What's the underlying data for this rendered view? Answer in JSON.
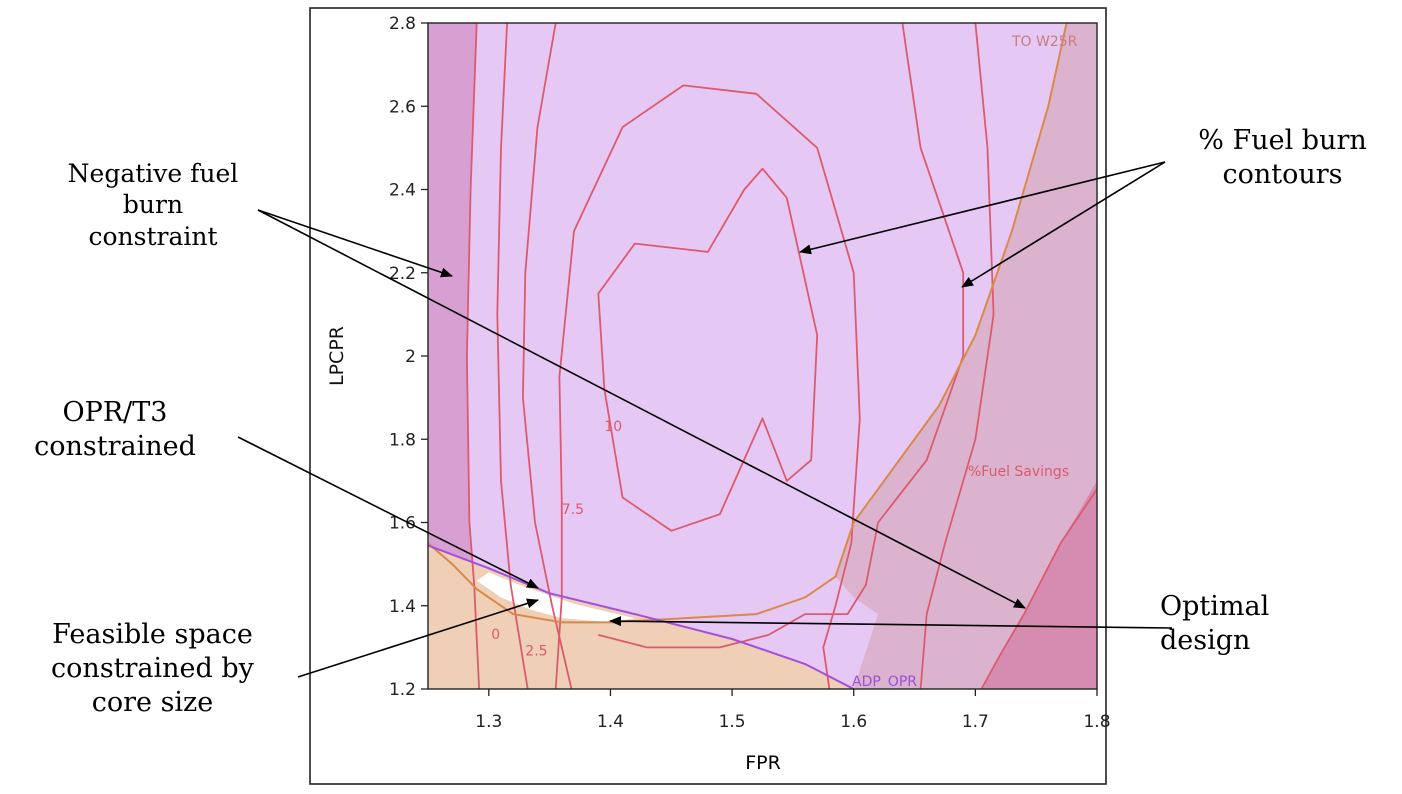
{
  "chart_data": {
    "type": "contour",
    "xlabel": "FPR",
    "ylabel": "LPCPR",
    "xlim": [
      1.25,
      1.8
    ],
    "ylim": [
      1.2,
      2.8
    ],
    "x_ticks": [
      "1.3",
      "1.4",
      "1.5",
      "1.6",
      "1.7",
      "1.8"
    ],
    "y_ticks": [
      "1.2",
      "1.4",
      "1.6",
      "1.8",
      "2",
      "2.2",
      "2.4",
      "2.6",
      "2.8"
    ],
    "contour_level_labels": [
      {
        "text": "0",
        "x": 1.302,
        "y": 1.32
      },
      {
        "text": "2.5",
        "x": 1.33,
        "y": 1.28
      },
      {
        "text": "7.5",
        "x": 1.36,
        "y": 1.62
      },
      {
        "text": "10",
        "x": 1.395,
        "y": 1.82
      }
    ],
    "constraint_labels": {
      "to_w25r": "TO W25R",
      "fuel_savings": "%Fuel Savings",
      "adp_opr": "ADP_OPR"
    },
    "contours": [
      {
        "level": "0",
        "points": [
          [
            1.29,
            2.8
          ],
          [
            1.285,
            2.4
          ],
          [
            1.282,
            2.0
          ],
          [
            1.284,
            1.6
          ],
          [
            1.288,
            1.45
          ],
          [
            1.292,
            1.2
          ]
        ]
      },
      {
        "level": "2.5",
        "points": [
          [
            1.315,
            2.8
          ],
          [
            1.31,
            2.5
          ],
          [
            1.307,
            2.1
          ],
          [
            1.31,
            1.7
          ],
          [
            1.318,
            1.45
          ],
          [
            1.332,
            1.2
          ]
        ]
      },
      {
        "level": "5",
        "points": [
          [
            1.355,
            2.8
          ],
          [
            1.34,
            2.55
          ],
          [
            1.33,
            2.2
          ],
          [
            1.328,
            1.9
          ],
          [
            1.338,
            1.6
          ],
          [
            1.352,
            1.4
          ],
          [
            1.368,
            1.2
          ]
        ]
      },
      {
        "level": "7.5",
        "points": [
          [
            1.355,
            1.2
          ],
          [
            1.36,
            1.42
          ],
          [
            1.36,
            1.65
          ],
          [
            1.358,
            1.95
          ],
          [
            1.37,
            2.3
          ],
          [
            1.41,
            2.55
          ],
          [
            1.46,
            2.65
          ],
          [
            1.52,
            2.63
          ],
          [
            1.57,
            2.5
          ],
          [
            1.6,
            2.2
          ],
          [
            1.605,
            1.85
          ],
          [
            1.598,
            1.55
          ],
          [
            1.585,
            1.4
          ],
          [
            1.575,
            1.3
          ],
          [
            1.58,
            1.2
          ]
        ]
      },
      {
        "level": "10",
        "points": [
          [
            1.395,
            1.92
          ],
          [
            1.39,
            2.15
          ],
          [
            1.42,
            2.27
          ],
          [
            1.48,
            2.25
          ],
          [
            1.51,
            2.4
          ],
          [
            1.525,
            2.45
          ],
          [
            1.545,
            2.38
          ],
          [
            1.57,
            2.05
          ],
          [
            1.565,
            1.75
          ],
          [
            1.545,
            1.7
          ],
          [
            1.525,
            1.85
          ],
          [
            1.49,
            1.62
          ],
          [
            1.45,
            1.58
          ],
          [
            1.41,
            1.66
          ],
          [
            1.395,
            1.92
          ]
        ]
      },
      {
        "level": "10",
        "points": [
          [
            1.64,
            2.8
          ],
          [
            1.655,
            2.5
          ],
          [
            1.69,
            2.2
          ],
          [
            1.69,
            2.0
          ],
          [
            1.66,
            1.75
          ],
          [
            1.62,
            1.6
          ],
          [
            1.61,
            1.45
          ],
          [
            1.595,
            1.38
          ],
          [
            1.56,
            1.38
          ],
          [
            1.53,
            1.33
          ],
          [
            1.49,
            1.3
          ],
          [
            1.43,
            1.3
          ],
          [
            1.39,
            1.33
          ]
        ]
      },
      {
        "level": "7.5",
        "points": [
          [
            1.7,
            2.8
          ],
          [
            1.71,
            2.5
          ],
          [
            1.715,
            2.1
          ],
          [
            1.7,
            1.8
          ],
          [
            1.675,
            1.55
          ],
          [
            1.66,
            1.38
          ],
          [
            1.655,
            1.2
          ]
        ]
      },
      {
        "level": "5",
        "points": [
          [
            1.8,
            1.68
          ],
          [
            1.77,
            1.55
          ],
          [
            1.74,
            1.38
          ],
          [
            1.72,
            1.28
          ],
          [
            1.705,
            1.2
          ]
        ]
      }
    ],
    "annotations": [
      {
        "text": "Negative fuel\nburn\nconstraint"
      },
      {
        "text": "% Fuel burn\ncontours"
      },
      {
        "text": "OPR/T3\nconstrained"
      },
      {
        "text": "Feasible space\nconstrained by\ncore size"
      },
      {
        "text": "Optimal\ndesign"
      }
    ]
  },
  "colors": {
    "background": "#e6c8f4",
    "left_band": "#d8a0d2",
    "fuel_region": "#dcb3cf",
    "fuel_region_dark": "#d68bb0",
    "core_region": "#efcfb6",
    "feasible": "#ffffff",
    "contour": "#dc5a6e",
    "orange_line": "#d9894a",
    "opr_line": "#a24fdb"
  }
}
